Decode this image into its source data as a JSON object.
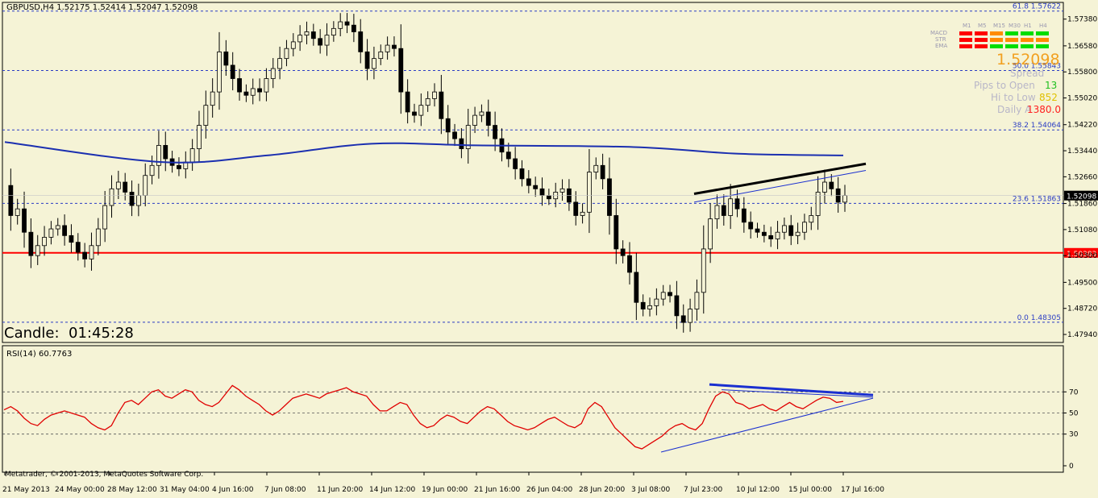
{
  "header": {
    "symbol_info": "GBPUSD,H4  1.52175 1.52414 1.52047 1.52098"
  },
  "candle_timer": {
    "label": "Candle:",
    "value": "01:45:28"
  },
  "indicator_panel": {
    "timeframes": [
      "M1",
      "M5",
      "M15",
      "M30",
      "H1",
      "H4"
    ],
    "rows": [
      {
        "name": "MACD",
        "colors": [
          "#ff0000",
          "#ff0000",
          "#ff8c00",
          "#00dd00",
          "#00dd00",
          "#00dd00"
        ]
      },
      {
        "name": "STR",
        "colors": [
          "#ff0000",
          "#ff0000",
          "#ff8c00",
          "#ff8c00",
          "#ff8c00",
          "#ff8c00"
        ]
      },
      {
        "name": "EMA",
        "colors": [
          "#ff0000",
          "#ff0000",
          "#00dd00",
          "#00dd00",
          "#00dd00",
          "#00dd00"
        ]
      }
    ],
    "price": "1.52098",
    "spread_label": "Spread",
    "spread_value": "",
    "pips_to_open_label": "Pips to Open",
    "pips_to_open_value": "13",
    "hi_to_low_label": "Hi to Low",
    "hi_to_low_value": "852",
    "daily_avg_label": "Daily A",
    "daily_avg_value": "1380.0"
  },
  "footer": {
    "copyright": "Metatrader, © 2001-2013, MetaQuotes Software Corp."
  },
  "colors": {
    "background": "#f5f3d6",
    "bull_candle": "#f5f3d6",
    "bear_candle": "#000000",
    "ma_line": "#1b2fb0",
    "support_line": "#ff0000",
    "fib_line": "#2a3cc4",
    "rsi_line": "#e00000",
    "trend_black": "#000000",
    "trend_blue": "#1a2fd0"
  },
  "chart_data": [
    {
      "type": "candlestick",
      "title": "GBPUSD,H4",
      "ylim": [
        1.477,
        1.5788
      ],
      "y_ticks": [
        "1.57380",
        "1.56580",
        "1.55800",
        "1.55020",
        "1.54220",
        "1.53440",
        "1.52660",
        "1.51860",
        "1.51080",
        "1.50300",
        "1.49500",
        "1.48720",
        "1.47940"
      ],
      "x_ticks": [
        "21 May 2013",
        "24 May 00:00",
        "28 May 12:00",
        "31 May 04:00",
        "4 Jun 16:00",
        "7 Jun 08:00",
        "11 Jun 20:00",
        "14 Jun 12:00",
        "19 Jun 00:00",
        "21 Jun 16:00",
        "26 Jun 04:00",
        "28 Jun 20:00",
        "3 Jul 08:00",
        "7 Jul 23:00",
        "10 Jul 12:00",
        "15 Jul 00:00",
        "17 Jul 16:00"
      ],
      "fib_levels": [
        {
          "label": "61.8  1.57622",
          "value": 1.57622
        },
        {
          "label": "50.0  1.55843",
          "value": 1.55843
        },
        {
          "label": "38.2  1.54064",
          "value": 1.54064
        },
        {
          "label": "23.6  1.51863",
          "value": 1.51863
        },
        {
          "label": "0.0  1.48305",
          "value": 1.48305
        }
      ],
      "support_level": {
        "label": "1.50383",
        "value": 1.50383
      },
      "current_price": {
        "label": "1.52098",
        "value": 1.52098
      },
      "ohlc_path": [
        1.524,
        1.515,
        1.517,
        1.51,
        1.503,
        1.506,
        1.5085,
        1.511,
        1.512,
        1.509,
        1.507,
        1.504,
        1.502,
        1.506,
        1.511,
        1.518,
        1.523,
        1.525,
        1.522,
        1.518,
        1.521,
        1.527,
        1.53,
        1.536,
        1.532,
        1.53,
        1.529,
        1.531,
        1.535,
        1.542,
        1.548,
        1.552,
        1.564,
        1.56,
        1.556,
        1.552,
        1.551,
        1.553,
        1.552,
        1.556,
        1.559,
        1.562,
        1.565,
        1.567,
        1.569,
        1.57,
        1.568,
        1.566,
        1.569,
        1.571,
        1.573,
        1.572,
        1.57,
        1.564,
        1.559,
        1.562,
        1.564,
        1.566,
        1.565,
        1.552,
        1.546,
        1.545,
        1.548,
        1.55,
        1.552,
        1.544,
        1.54,
        1.538,
        1.535,
        1.542,
        1.545,
        1.546,
        1.542,
        1.538,
        1.534,
        1.532,
        1.529,
        1.526,
        1.524,
        1.523,
        1.521,
        1.52,
        1.522,
        1.523,
        1.519,
        1.515,
        1.516,
        1.528,
        1.53,
        1.526,
        1.515,
        1.505,
        1.503,
        1.498,
        1.489,
        1.487,
        1.488,
        1.49,
        1.492,
        1.491,
        1.485,
        1.483,
        1.487,
        1.492,
        1.505,
        1.514,
        1.518,
        1.515,
        1.52,
        1.517,
        1.513,
        1.511,
        1.51,
        1.509,
        1.508,
        1.51,
        1.512,
        1.509,
        1.51,
        1.513,
        1.515,
        1.522,
        1.525,
        1.523,
        1.519,
        1.521
      ],
      "moving_average": [
        {
          "date": "21 May 2013",
          "value": 1.537
        },
        {
          "date": "31 May 04:00",
          "value": 1.531
        },
        {
          "date": "7 Jun 08:00",
          "value": 1.533
        },
        {
          "date": "14 Jun 12:00",
          "value": 1.5365
        },
        {
          "date": "21 Jun 16:00",
          "value": 1.536
        },
        {
          "date": "3 Jul 08:00",
          "value": 1.5355
        },
        {
          "date": "10 Jul 12:00",
          "value": 1.5335
        },
        {
          "date": "17 Jul 16:00",
          "value": 1.533
        }
      ],
      "annotations": [
        {
          "type": "trendline",
          "color": "black",
          "from": {
            "date": "7 Jul 23:00",
            "value": 1.5215
          },
          "to": {
            "date": "17 Jul 16:00",
            "value": 1.5305
          }
        },
        {
          "type": "trendline",
          "color": "blue",
          "from": {
            "date": "7 Jul 23:00",
            "value": 1.519
          },
          "to": {
            "date": "17 Jul 16:00",
            "value": 1.5285
          }
        }
      ]
    },
    {
      "type": "line",
      "title": "RSI(14) 60.7763",
      "ylim": [
        0,
        100
      ],
      "y_ticks": [
        "70",
        "50",
        "30",
        "0"
      ],
      "levels": [
        70,
        50,
        30
      ],
      "values": [
        53,
        56,
        52,
        45,
        40,
        38,
        44,
        48,
        50,
        52,
        50,
        48,
        46,
        40,
        36,
        34,
        38,
        50,
        60,
        62,
        58,
        64,
        70,
        72,
        66,
        64,
        68,
        72,
        70,
        62,
        58,
        56,
        60,
        68,
        76,
        72,
        66,
        62,
        58,
        52,
        48,
        52,
        58,
        64,
        66,
        68,
        66,
        64,
        68,
        70,
        72,
        74,
        70,
        68,
        66,
        58,
        52,
        52,
        56,
        60,
        58,
        48,
        40,
        36,
        38,
        44,
        48,
        46,
        42,
        40,
        46,
        52,
        56,
        54,
        48,
        42,
        38,
        36,
        34,
        36,
        40,
        44,
        46,
        42,
        38,
        36,
        40,
        54,
        60,
        56,
        46,
        36,
        30,
        24,
        18,
        16,
        20,
        24,
        28,
        34,
        38,
        40,
        36,
        34,
        40,
        54,
        66,
        70,
        68,
        60,
        58,
        54,
        56,
        58,
        54,
        52,
        56,
        60,
        56,
        54,
        58,
        62,
        65,
        64,
        60,
        61
      ]
    }
  ]
}
